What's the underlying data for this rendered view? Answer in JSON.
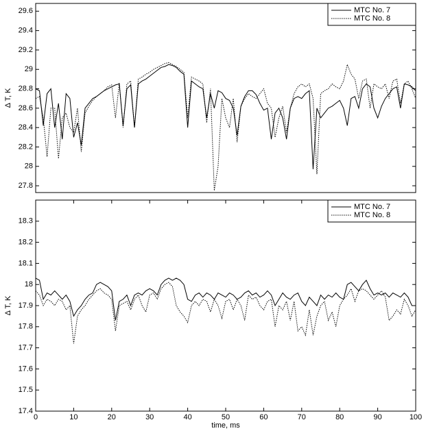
{
  "chart_data": [
    {
      "type": "line",
      "ylabel": "Δ T, K",
      "xlim": [
        0,
        100
      ],
      "ylim": [
        27.73,
        29.68
      ],
      "yticks": [
        27.8,
        28,
        28.2,
        28.4,
        28.6,
        28.8,
        29,
        29.2,
        29.4,
        29.6
      ],
      "legend": "upper right",
      "x": [
        0,
        1,
        2,
        3,
        4,
        5,
        6,
        7,
        8,
        9,
        10,
        11,
        12,
        13,
        14,
        15,
        16,
        17,
        18,
        19,
        20,
        21,
        22,
        23,
        24,
        25,
        26,
        27,
        28,
        29,
        30,
        31,
        32,
        33,
        34,
        35,
        36,
        37,
        38,
        39,
        40,
        41,
        42,
        43,
        44,
        45,
        46,
        47,
        48,
        49,
        50,
        51,
        52,
        53,
        54,
        55,
        56,
        57,
        58,
        59,
        60,
        61,
        62,
        63,
        64,
        65,
        66,
        67,
        68,
        69,
        70,
        71,
        72,
        73,
        74,
        75,
        76,
        77,
        78,
        79,
        80,
        81,
        82,
        83,
        84,
        85,
        86,
        87,
        88,
        89,
        90,
        91,
        92,
        93,
        94,
        95,
        96,
        97,
        98,
        99,
        100
      ],
      "series": [
        {
          "name": "MTC No. 7",
          "color": "#000000",
          "linestyle": "solid",
          "values": [
            28.8,
            28.78,
            28.42,
            28.75,
            28.8,
            28.4,
            28.65,
            28.28,
            28.75,
            28.7,
            28.3,
            28.45,
            28.22,
            28.6,
            28.65,
            28.7,
            28.72,
            28.75,
            28.78,
            28.8,
            28.82,
            28.84,
            28.85,
            28.42,
            28.8,
            28.84,
            28.4,
            28.85,
            28.88,
            28.9,
            28.93,
            28.96,
            28.99,
            29.02,
            29.03,
            29.05,
            29.04,
            29.02,
            28.98,
            28.95,
            28.4,
            28.88,
            28.85,
            28.82,
            28.8,
            28.5,
            28.75,
            28.6,
            28.78,
            28.76,
            28.7,
            28.68,
            28.6,
            28.32,
            28.62,
            28.72,
            28.78,
            28.78,
            28.74,
            28.65,
            28.58,
            28.6,
            28.28,
            28.55,
            28.6,
            28.5,
            28.28,
            28.6,
            28.7,
            28.72,
            28.7,
            28.75,
            28.78,
            27.97,
            28.6,
            28.5,
            28.55,
            28.6,
            28.62,
            28.65,
            28.68,
            28.6,
            28.42,
            28.7,
            28.72,
            28.6,
            28.8,
            28.85,
            28.82,
            28.6,
            28.5,
            28.62,
            28.7,
            28.75,
            28.8,
            28.82,
            28.6,
            28.85,
            28.84,
            28.82,
            28.78
          ]
        },
        {
          "name": "MTC No. 8",
          "color": "#000000",
          "linestyle": "dotted",
          "values": [
            28.7,
            28.72,
            28.5,
            28.1,
            28.6,
            28.6,
            28.08,
            28.5,
            28.55,
            28.4,
            28.35,
            28.6,
            28.15,
            28.55,
            28.62,
            28.68,
            28.72,
            28.75,
            28.78,
            28.82,
            28.84,
            28.5,
            28.86,
            28.4,
            28.85,
            28.88,
            28.4,
            28.9,
            28.92,
            28.95,
            28.97,
            29.0,
            29.02,
            29.04,
            29.06,
            29.07,
            29.05,
            29.03,
            29.0,
            28.97,
            28.5,
            28.92,
            28.9,
            28.88,
            28.85,
            28.45,
            28.8,
            27.75,
            28.0,
            28.7,
            28.5,
            28.4,
            28.7,
            28.25,
            28.62,
            28.7,
            28.75,
            28.72,
            28.7,
            28.75,
            28.8,
            28.65,
            28.6,
            28.3,
            28.5,
            28.62,
            28.35,
            28.6,
            28.75,
            28.82,
            28.85,
            28.82,
            28.85,
            28.7,
            27.92,
            28.75,
            28.78,
            28.8,
            28.85,
            28.82,
            28.8,
            28.88,
            29.05,
            28.95,
            28.9,
            28.7,
            28.88,
            28.9,
            28.6,
            28.85,
            28.82,
            28.8,
            28.85,
            28.7,
            28.88,
            28.9,
            28.65,
            28.85,
            28.88,
            28.8,
            28.7
          ]
        }
      ]
    },
    {
      "type": "line",
      "ylabel": "Δ T, K",
      "xlabel": "time, ms",
      "xlim": [
        0,
        100
      ],
      "ylim": [
        17.4,
        18.4
      ],
      "xticks": [
        0,
        10,
        20,
        30,
        40,
        50,
        60,
        70,
        80,
        90,
        100
      ],
      "yticks": [
        17.4,
        17.5,
        17.6,
        17.7,
        17.8,
        17.9,
        18,
        18.1,
        18.2,
        18.3
      ],
      "legend": "upper right",
      "x": [
        0,
        1,
        2,
        3,
        4,
        5,
        6,
        7,
        8,
        9,
        10,
        11,
        12,
        13,
        14,
        15,
        16,
        17,
        18,
        19,
        20,
        21,
        22,
        23,
        24,
        25,
        26,
        27,
        28,
        29,
        30,
        31,
        32,
        33,
        34,
        35,
        36,
        37,
        38,
        39,
        40,
        41,
        42,
        43,
        44,
        45,
        46,
        47,
        48,
        49,
        50,
        51,
        52,
        53,
        54,
        55,
        56,
        57,
        58,
        59,
        60,
        61,
        62,
        63,
        64,
        65,
        66,
        67,
        68,
        69,
        70,
        71,
        72,
        73,
        74,
        75,
        76,
        77,
        78,
        79,
        80,
        81,
        82,
        83,
        84,
        85,
        86,
        87,
        88,
        89,
        90,
        91,
        92,
        93,
        94,
        95,
        96,
        97,
        98,
        99,
        100
      ],
      "series": [
        {
          "name": "MTC No. 7",
          "color": "#000000",
          "linestyle": "solid",
          "values": [
            18.03,
            18.02,
            17.93,
            17.96,
            17.95,
            17.97,
            17.95,
            17.93,
            17.95,
            17.92,
            17.85,
            17.88,
            17.9,
            17.93,
            17.95,
            17.96,
            18.0,
            18.01,
            18.0,
            17.99,
            17.97,
            17.83,
            17.92,
            17.93,
            17.95,
            17.9,
            17.95,
            17.96,
            17.95,
            17.97,
            17.98,
            17.97,
            17.95,
            18.0,
            18.02,
            18.03,
            18.02,
            18.03,
            18.02,
            18.0,
            17.93,
            17.92,
            17.95,
            17.96,
            17.94,
            17.96,
            17.95,
            17.93,
            17.96,
            17.95,
            17.94,
            17.96,
            17.95,
            17.93,
            17.94,
            17.96,
            17.97,
            17.95,
            17.96,
            17.94,
            17.95,
            17.97,
            17.95,
            17.9,
            17.93,
            17.96,
            17.94,
            17.93,
            17.95,
            17.96,
            17.92,
            17.9,
            17.94,
            17.92,
            17.9,
            17.95,
            17.93,
            17.95,
            17.94,
            17.96,
            17.94,
            17.93,
            18.0,
            18.01,
            17.99,
            17.97,
            18.0,
            18.02,
            17.98,
            17.95,
            17.96,
            17.95,
            17.96,
            17.94,
            17.96,
            17.95,
            17.94,
            17.96,
            17.94,
            17.9,
            17.9
          ]
        },
        {
          "name": "MTC No. 8",
          "color": "#000000",
          "linestyle": "dotted",
          "values": [
            17.97,
            17.95,
            17.9,
            17.93,
            17.92,
            17.9,
            17.93,
            17.92,
            17.88,
            17.9,
            17.72,
            17.85,
            17.88,
            17.9,
            17.93,
            17.95,
            17.97,
            17.98,
            17.96,
            17.95,
            17.93,
            17.78,
            17.9,
            17.91,
            17.92,
            17.88,
            17.93,
            17.95,
            17.9,
            17.87,
            17.95,
            17.96,
            17.93,
            17.98,
            18.0,
            18.01,
            17.99,
            17.9,
            17.87,
            17.85,
            17.82,
            17.9,
            17.92,
            17.9,
            17.93,
            17.92,
            17.87,
            17.93,
            17.9,
            17.84,
            17.92,
            17.93,
            17.88,
            17.93,
            17.9,
            17.83,
            17.95,
            17.93,
            17.94,
            17.9,
            17.88,
            17.92,
            17.93,
            17.8,
            17.9,
            17.88,
            17.92,
            17.83,
            17.92,
            17.78,
            17.8,
            17.76,
            17.88,
            17.76,
            17.85,
            17.9,
            17.92,
            17.83,
            17.87,
            17.8,
            17.9,
            17.93,
            17.95,
            17.98,
            17.92,
            17.97,
            17.98,
            17.97,
            17.95,
            17.93,
            17.95,
            17.97,
            17.94,
            17.83,
            17.85,
            17.88,
            17.86,
            17.93,
            17.9,
            17.85,
            17.88
          ]
        }
      ]
    }
  ]
}
